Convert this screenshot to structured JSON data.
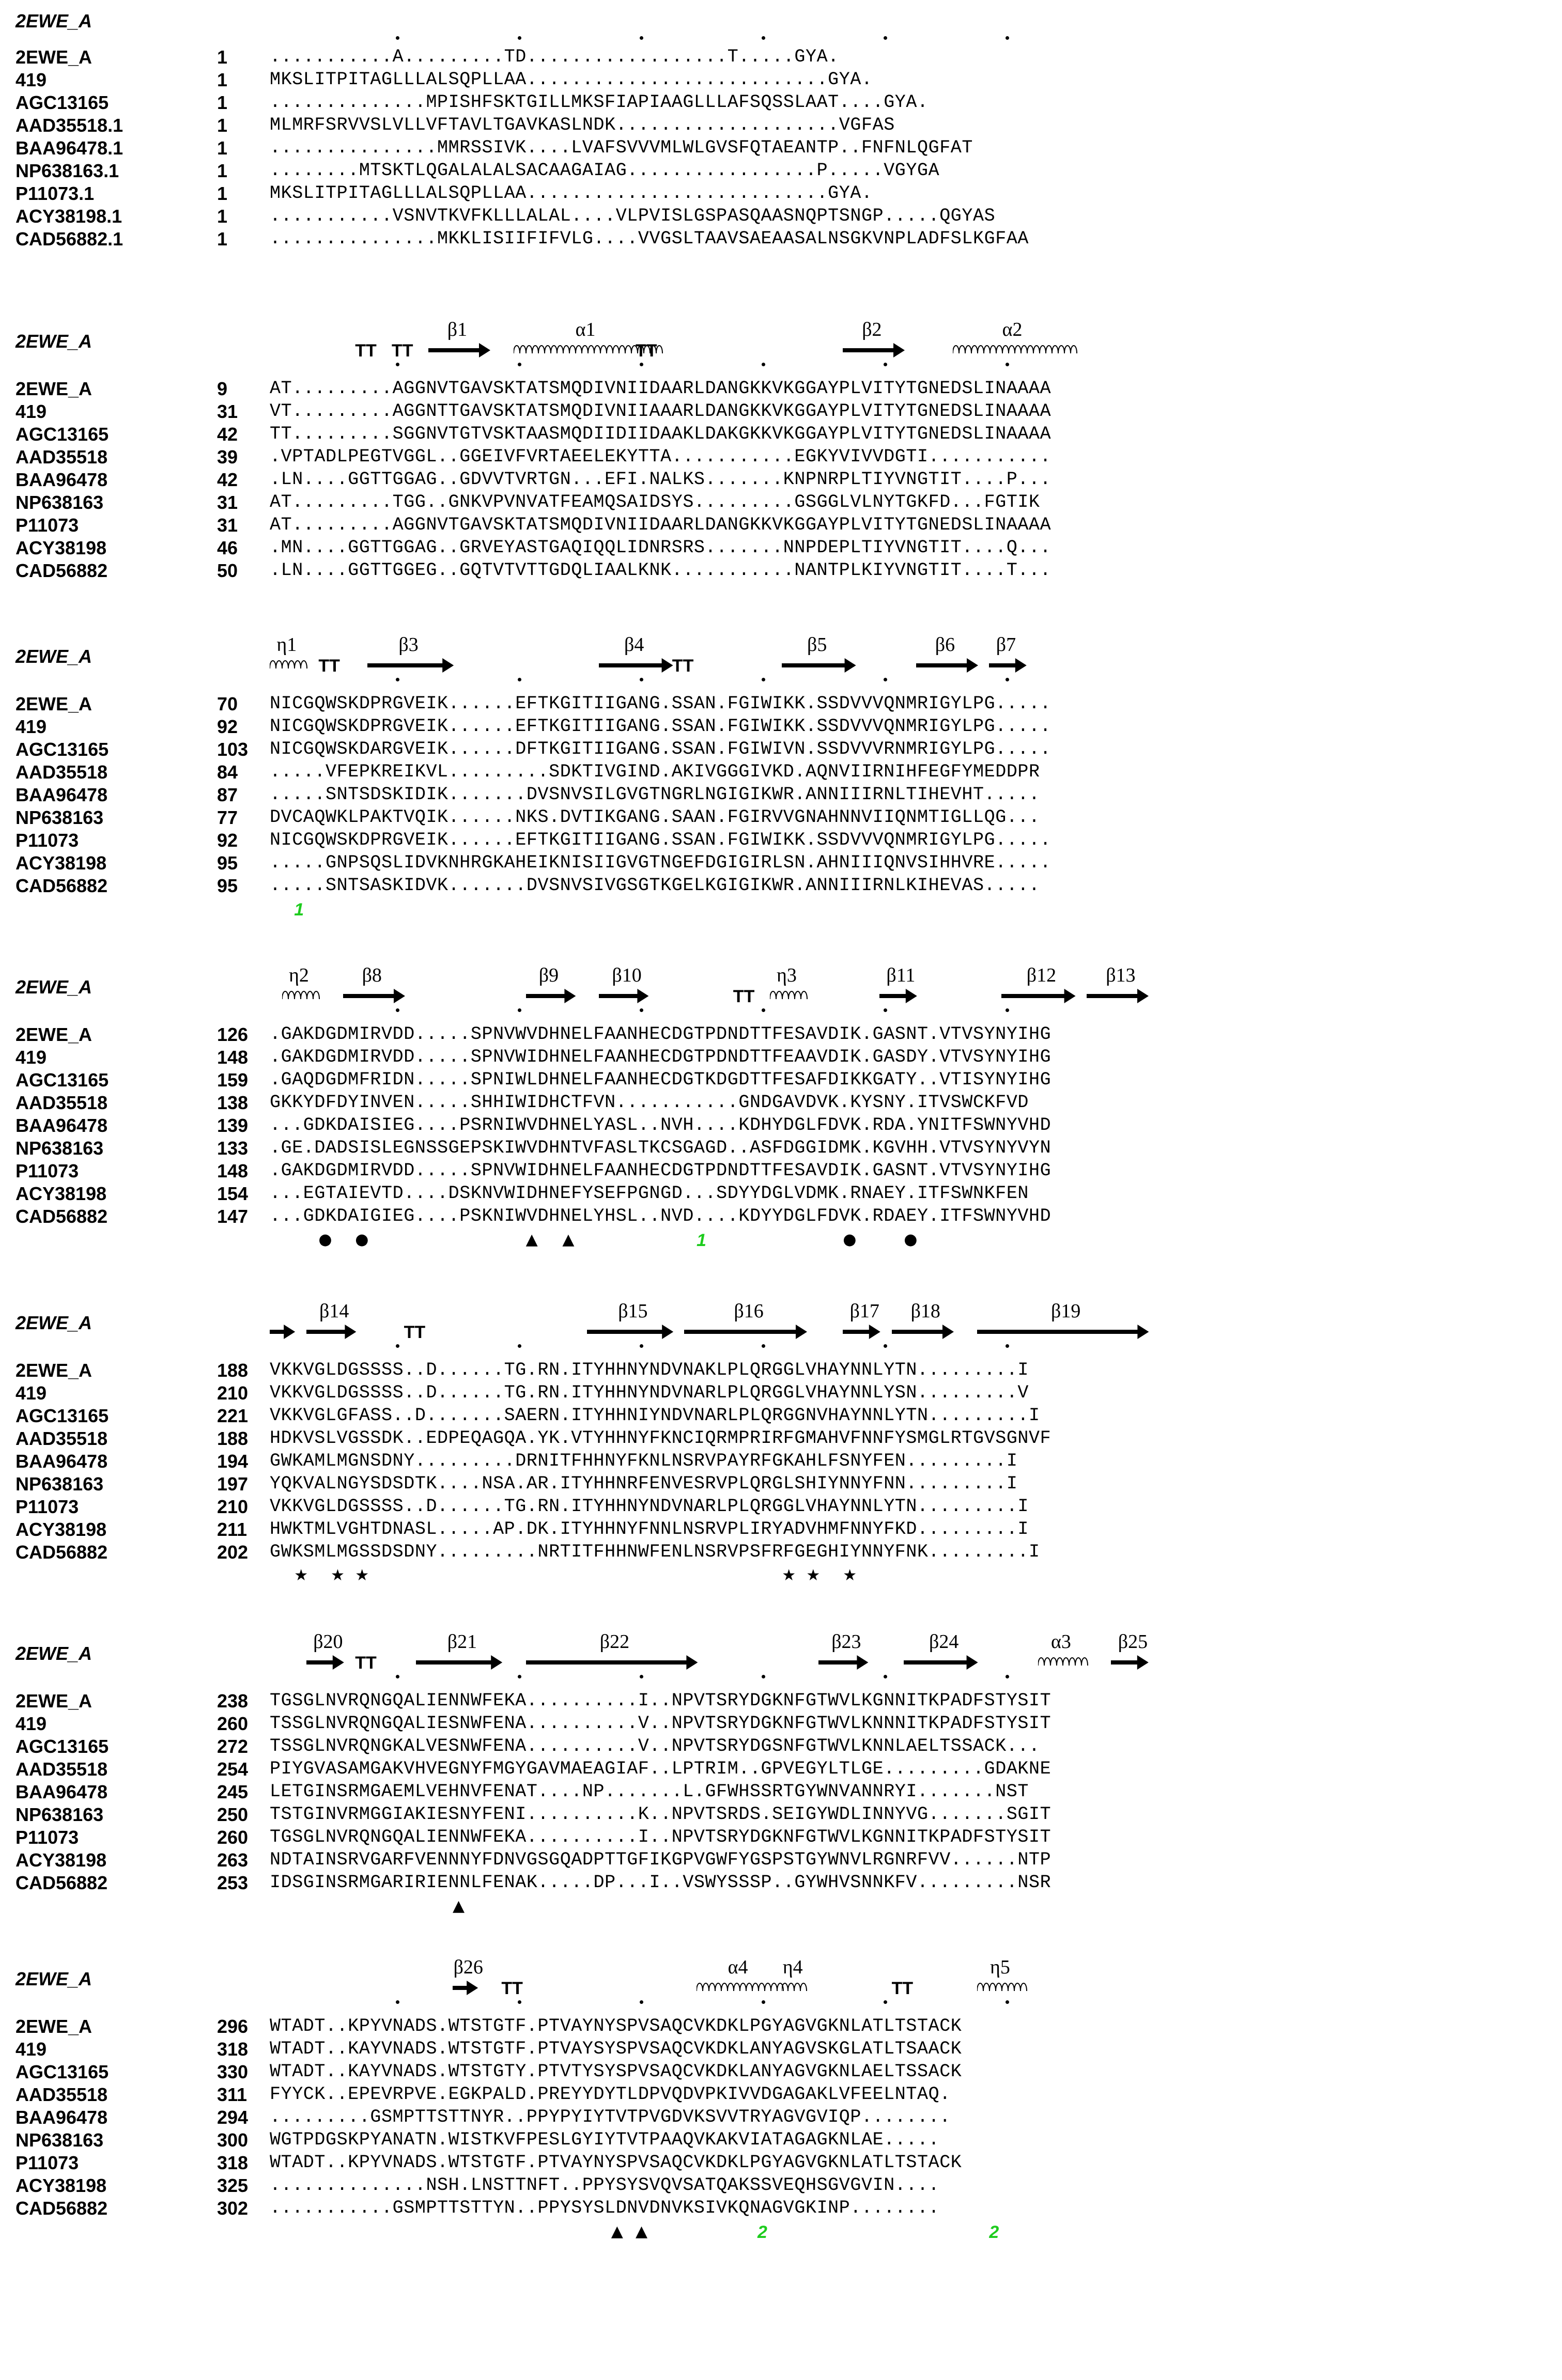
{
  "reference_name": "2EWE_A",
  "blocks": [
    {
      "names": [
        "2EWE_A",
        "419",
        "AGC13165",
        "AAD35518.1",
        "BAA96478.1",
        "NP638163.1",
        "P11073.1",
        "ACY38198.1",
        "CAD56882.1"
      ],
      "numbers": [
        "1",
        "1",
        "1",
        "1",
        "1",
        "1",
        "1",
        "1",
        "1"
      ],
      "seqs": [
        "...........A.........TD..................T.....GYA.",
        "MKSLITPITAGLLLALSQPLLAA...........................GYA.",
        "..............MPISHFSKTGILLMKSFIAPIAAGLLLAFSQSSLAAT....GYA.",
        "MLMRFSRVVSLVLLVFTAVLTGAVKASLNDK....................VGFAS",
        "...............MMRSSIVK....LVAFSVVVMLWLGVSFQTAEANTP..FNFNLQGFAT",
        "........MTSKTLQGALALALSACAAGAIAG.................P.....VGYGA",
        "MKSLITPITAGLLLALSQPLLAA...........................GYA.",
        "...........VSNVTKVFKLLLALAL....VLPVISLGSPASQAASNQPTSNGP.....QGYAS",
        "...............MKKLISIIFIFVLG....VVGSLTAAVSAEAASALNSGKVNPLADFSLKGFAA"
      ],
      "ss": [],
      "marks": []
    },
    {
      "names": [
        "2EWE_A",
        "419",
        "AGC13165",
        "AAD35518",
        "BAA96478",
        "NP638163",
        "P11073",
        "ACY38198",
        "CAD56882"
      ],
      "numbers": [
        "9",
        "31",
        "42",
        "39",
        "42",
        "31",
        "31",
        "46",
        "50"
      ],
      "seqs": [
        "AT.........AGGNVTGAVSKTATSMQDIVNIIDAARLDANGKKVKGGAYPLVITYTGNEDSLINAAAA",
        "VT.........AGGNTTGAVSKTATSMQDIVNIIAAARLDANGKKVKGGAYPLVITYTGNEDSLINAAAA",
        "TT.........SGGNVTGTVSKTAASMQDIIDIIDAAKLDAKGKKVKGGAYPLVITYTGNEDSLINAAAA",
        ".VPTADLPEGTVGGL..GGEIVFVRTAEELEKYTTA...........EGKYVIVVDGTI...........",
        ".LN....GGTTGGAG..GDVVTVRTGN...EFI.NALKS.......KNPNRPLTIYVNGTIT....P...",
        "AT.........TGG..GNKVPVNVATFEAMQSAIDSYS.........GSGGLVLNYTGKFD...FGTIK",
        "AT.........AGGNVTGAVSKTATSMQDIVNIIDAARLDANGKKVKGGAYPLVITYTGNEDSLINAAAA",
        ".MN....GGTTGGAG..GRVEYASTGAQIQQLIDNRSRS.......NNPDEPLTIYVNGTIT....Q...",
        ".LN....GGTTGGEG..GQTVTVTTGDQLIAALKNK...........NANTPLKIYVNGTIT....T..."
      ],
      "ss": [
        {
          "type": "TT",
          "pos": 7
        },
        {
          "type": "TT",
          "pos": 10
        },
        {
          "type": "arrow",
          "label": "β1",
          "start": 13,
          "end": 18
        },
        {
          "type": "helix",
          "label": "α1",
          "start": 20,
          "end": 32
        },
        {
          "type": "TT",
          "pos": 30
        },
        {
          "type": "arrow",
          "label": "β2",
          "start": 47,
          "end": 52
        },
        {
          "type": "helix",
          "label": "α2",
          "start": 56,
          "end": 66
        }
      ],
      "marks": []
    },
    {
      "names": [
        "2EWE_A",
        "419",
        "AGC13165",
        "AAD35518",
        "BAA96478",
        "NP638163",
        "P11073",
        "ACY38198",
        "CAD56882"
      ],
      "numbers": [
        "70",
        "92",
        "103",
        "84",
        "87",
        "77",
        "92",
        "95",
        "95"
      ],
      "seqs": [
        "NICGQWSKDPRGVEIK......EFTKGITIIGANG.SSAN.FGIWIKK.SSDVVVQNMRIGYLPG.....",
        "NICGQWSKDPRGVEIK......EFTKGITIIGANG.SSAN.FGIWIKK.SSDVVVQNMRIGYLPG.....",
        "NICGQWSKDARGVEIK......DFTKGITIIGANG.SSAN.FGIWIVN.SSDVVVRNMRIGYLPG.....",
        ".....VFEPKREIKVL.........SDKTIVGIND.AKIVGGGIVKD.AQNVIIRNIHFEGFYMEDDPR",
        ".....SNTSDSKIDIK.......DVSNVSILGVGTNGRLNGIGIKWR.ANNIIIRNLTIHEVHT.....",
        "DVCAQWKLPAKTVQIK......NKS.DVTIKGANG.SAAN.FGIRVVGNAHNNVIIQNMTIGLLQG...",
        "NICGQWSKDPRGVEIK......EFTKGITIIGANG.SSAN.FGIWIKK.SSDVVVQNMRIGYLPG.....",
        ".....GNPSQSLIDVKNHRGKAHEIKNISIIGVGTNGEFDGIGIRLSN.AHNIIIQNVSIHHVRE.....",
        ".....SNTSASKIDVK.......DVSNVSIVGSGTKGELKGIGIKWR.ANNIIIRNLKIHEVAS....."
      ],
      "ss": [
        {
          "type": "eta",
          "label": "η1",
          "start": 0,
          "end": 3
        },
        {
          "type": "TT",
          "pos": 4
        },
        {
          "type": "arrow",
          "label": "β3",
          "start": 8,
          "end": 15
        },
        {
          "type": "arrow",
          "label": "β4",
          "start": 27,
          "end": 33
        },
        {
          "type": "TT",
          "pos": 33
        },
        {
          "type": "arrow",
          "label": "β5",
          "start": 42,
          "end": 48
        },
        {
          "type": "arrow",
          "label": "β6",
          "start": 53,
          "end": 58
        },
        {
          "type": "arrow",
          "label": "β7",
          "start": 59,
          "end": 62
        }
      ],
      "marks": [
        {
          "type": "green",
          "text": "1",
          "pos": 2
        }
      ]
    },
    {
      "names": [
        "2EWE_A",
        "419",
        "AGC13165",
        "AAD35518",
        "BAA96478",
        "NP638163",
        "P11073",
        "ACY38198",
        "CAD56882"
      ],
      "numbers": [
        "126",
        "148",
        "159",
        "138",
        "139",
        "133",
        "148",
        "154",
        "147"
      ],
      "seqs": [
        ".GAKDGDMIRVDD.....SPNVWVDHNELFAANHECDGTPDNDTTFESAVDIK.GASNT.VTVSYNYIHG",
        ".GAKDGDMIRVDD.....SPNVWIDHNELFAANHECDGTPDNDTTFEAAVDIK.GASDY.VTVSYNYIHG",
        ".GAQDGDMFRIDN.....SPNIWLDHNELFAANHECDGTKDGDTTFESAFDIKKGATY..VTISYNYIHG",
        "GKKYDFDYINVEN.....SHHIWIDHCTFVN...........GNDGAVDVK.KYSNY.ITVSWCKFVD",
        "...GDKDAISIEG....PSRNIWVDHNELYASL..NVH....KDHYDGLFDVK.RDA.YNITFSWNYVHD",
        ".GE.DADSISLEGNSSGEPSKIWVDHNTVFASLTKCSGAGD..ASFDGGIDMK.KGVHH.VTVSYNYVYN",
        ".GAKDGDMIRVDD.....SPNVWIDHNELFAANHECDGTPDNDTTFESAVDIK.GASNT.VTVSYNYIHG",
        "...EGTAIEVTD....DSKNVWIDHNEFYSEFPGNGD...SDYYDGLVDMK.RNAEY.ITFSWNKFEN",
        "...GDKDAIGIEG....PSKNIWVDHNELYHSL..NVD....KDYYDGLFDVK.RDAEY.ITFSWNYVHD"
      ],
      "ss": [
        {
          "type": "eta",
          "label": "η2",
          "start": 1,
          "end": 4
        },
        {
          "type": "arrow",
          "label": "β8",
          "start": 6,
          "end": 11
        },
        {
          "type": "arrow",
          "label": "β9",
          "start": 21,
          "end": 25
        },
        {
          "type": "arrow",
          "label": "β10",
          "start": 27,
          "end": 31
        },
        {
          "type": "TT",
          "pos": 38
        },
        {
          "type": "eta",
          "label": "η3",
          "start": 41,
          "end": 44
        },
        {
          "type": "arrow",
          "label": "β11",
          "start": 50,
          "end": 53
        },
        {
          "type": "arrow",
          "label": "β12",
          "start": 60,
          "end": 66
        },
        {
          "type": "arrow",
          "label": "β13",
          "start": 67,
          "end": 72
        }
      ],
      "marks": [
        {
          "type": "circle",
          "pos": 4
        },
        {
          "type": "circle",
          "pos": 7
        },
        {
          "type": "triangle",
          "pos": 21
        },
        {
          "type": "triangle",
          "pos": 24
        },
        {
          "type": "green",
          "text": "1",
          "pos": 35
        },
        {
          "type": "circle",
          "pos": 47
        },
        {
          "type": "circle",
          "pos": 52
        }
      ]
    },
    {
      "names": [
        "2EWE_A",
        "419",
        "AGC13165",
        "AAD35518",
        "BAA96478",
        "NP638163",
        "P11073",
        "ACY38198",
        "CAD56882"
      ],
      "numbers": [
        "188",
        "210",
        "221",
        "188",
        "194",
        "197",
        "210",
        "211",
        "202"
      ],
      "seqs": [
        "VKKVGLDGSSSS..D......TG.RN.ITYHHNYNDVNAKLPLQRGGLVHAYNNLYTN.........I",
        "VKKVGLDGSSSS..D......TG.RN.ITYHHNYNDVNARLPLQRGGLVHAYNNLYSN.........V",
        "VKKVGLGFASS..D.......SAERN.ITYHHNIYNDVNARLPLQRGGNVHAYNNLYTN.........I",
        "HDKVSLVGSSDK..EDPEQAGQA.YK.VTYHHNYFKNCIQRMPRIRFGMAHVFNNFYSMGLRTGVSGNVF",
        "GWKAMLMGNSDNY.........DRNITFHHNYFKNLNSRVPAYRFGKAHLFSNYFEN.........I",
        "YQKVALNGYSDSDTK....NSA.AR.ITYHHNRFENVESRVPLQRGLSHIYNNYFNN.........I",
        "VKKVGLDGSSSS..D......TG.RN.ITYHHNYNDVNARLPLQRGGLVHAYNNLYTN.........I",
        "HWKTMLVGHTDNASL.....AP.DK.ITYHHNYFNNLNSRVPLIRYADVHMFNNYFKD.........I",
        "GWKSMLMGSSDSDNY.........NRTITFHHNWFENLNSRVPSFRFGEGHIYNNYFNK.........I"
      ],
      "ss": [
        {
          "type": "arrow",
          "label": "",
          "start": 0,
          "end": 2
        },
        {
          "type": "arrow",
          "label": "β14",
          "start": 3,
          "end": 7
        },
        {
          "type": "TT",
          "pos": 11
        },
        {
          "type": "arrow",
          "label": "β15",
          "start": 26,
          "end": 33
        },
        {
          "type": "arrow",
          "label": "β16",
          "start": 34,
          "end": 44
        },
        {
          "type": "arrow",
          "label": "β17",
          "start": 47,
          "end": 50
        },
        {
          "type": "arrow",
          "label": "β18",
          "start": 51,
          "end": 56
        },
        {
          "type": "arrow",
          "label": "β19",
          "start": 58,
          "end": 72
        }
      ],
      "marks": [
        {
          "type": "star",
          "pos": 2
        },
        {
          "type": "star",
          "pos": 5
        },
        {
          "type": "star",
          "pos": 7
        },
        {
          "type": "star",
          "pos": 42
        },
        {
          "type": "star",
          "pos": 44
        },
        {
          "type": "star",
          "pos": 47
        }
      ]
    },
    {
      "names": [
        "2EWE_A",
        "419",
        "AGC13165",
        "AAD35518",
        "BAA96478",
        "NP638163",
        "P11073",
        "ACY38198",
        "CAD56882"
      ],
      "numbers": [
        "238",
        "260",
        "272",
        "254",
        "245",
        "250",
        "260",
        "263",
        "253"
      ],
      "seqs": [
        "TGSGLNVRQNGQALIENNWFEKA..........I..NPVTSRYDGKNFGTWVLKGNNITKPADFSTYSIT",
        "TSSGLNVRQNGQALIESNWFENA..........V..NPVTSRYDGKNFGTWVLKNNNITKPADFSTYSIT",
        "TSSGLNVRQNGKALVESNWFENA..........V..NPVTSRYDGSNFGTWVLKNNLAELTSSACK...",
        "PIYGVASAMGAKVHVEGNYFMGYGAVMAEAGIAF..LPTRIM..GPVEGYLTLGE.........GDAKNE",
        "LETGINSRMGAEMLVEHNVFENAT....NP.......L.GFWHSSRTGYWNVANNRYI.......NST",
        "TSTGINVRMGGIAKIESNYFENI..........K..NPVTSRDS.SEIGYWDLINNYVG.......SGIT",
        "TGSGLNVRQNGQALIENNWFEKA..........I..NPVTSRYDGKNFGTWVLKGNNITKPADFSTYSIT",
        "NDTAINSRVGARFVENNNYFDNVGSGQADPTTGFIKGPVGWFYGSPSTGYWNVLRGNRFVV......NTP",
        "IDSGINSRMGARIRIENNLFENAK.....DP...I..VSWYSSSP..GYWHVSNNKFV.........NSR"
      ],
      "ss": [
        {
          "type": "arrow",
          "label": "β20",
          "start": 3,
          "end": 6
        },
        {
          "type": "TT",
          "pos": 7
        },
        {
          "type": "arrow",
          "label": "β21",
          "start": 12,
          "end": 19
        },
        {
          "type": "arrow",
          "label": "β22",
          "start": 21,
          "end": 35
        },
        {
          "type": "arrow",
          "label": "β23",
          "start": 45,
          "end": 49
        },
        {
          "type": "arrow",
          "label": "β24",
          "start": 52,
          "end": 58
        },
        {
          "type": "helix",
          "label": "α3",
          "start": 63,
          "end": 67
        },
        {
          "type": "arrow",
          "label": "β25",
          "start": 69,
          "end": 72
        }
      ],
      "marks": [
        {
          "type": "triangle",
          "pos": 15
        }
      ]
    },
    {
      "names": [
        "2EWE_A",
        "419",
        "AGC13165",
        "AAD35518",
        "BAA96478",
        "NP638163",
        "P11073",
        "ACY38198",
        "CAD56882"
      ],
      "numbers": [
        "296",
        "318",
        "330",
        "311",
        "294",
        "300",
        "318",
        "325",
        "302"
      ],
      "seqs": [
        "WTADT..KPYVNADS.WTSTGTF.PTVAYNYSPVSAQCVKDKLPGYAGVGKNLATLTSTACK",
        "WTADT..KAYVNADS.WTSTGTF.PTVAYSYSPVSAQCVKDKLANYAGVSKGLATLTSAACK",
        "WTADT..KAYVNADS.WTSTGTY.PTVTYSYSPVSAQCVKDKLANYAGVGKNLAELTSSACK",
        "FYYCK..EPEVRPVE.EGKPALD.PREYYDYTLDPVQDVPKIVVDGAGAKLVFEELNTAQ.",
        ".........GSMPTTSTTNYR..PPYPYIYTVTPVGDVKSVVTRYAGVGVIQP........",
        "WGTPDGSKPYANATN.WISTKVFPESLGYIYTVTPAAQVKAKVIATAGAGKNLAE.....",
        "WTADT..KPYVNADS.WTSTGTF.PTVAYNYSPVSAQCVKDKLPGYAGVGKNLATLTSTACK",
        "..............NSH.LNSTTNFT..PPYSYSVQVSATQAKSSVEQHSGVGVIN....",
        "...........GSMPTTSTTYN..PPYSYSLDNVDNVKSIVKQNAGVGKINP........"
      ],
      "ss": [
        {
          "type": "arrow",
          "label": "β26",
          "start": 15,
          "end": 17
        },
        {
          "type": "TT",
          "pos": 19
        },
        {
          "type": "helix",
          "label": "α4",
          "start": 35,
          "end": 42
        },
        {
          "type": "helix",
          "label": "η4",
          "start": 42,
          "end": 44
        },
        {
          "type": "TT",
          "pos": 51
        },
        {
          "type": "eta",
          "label": "η5",
          "start": 58,
          "end": 62
        }
      ],
      "marks": [
        {
          "type": "triangle",
          "pos": 28
        },
        {
          "type": "triangle",
          "pos": 30
        },
        {
          "type": "green",
          "text": "2",
          "pos": 40
        },
        {
          "type": "green",
          "text": "2",
          "pos": 59
        }
      ]
    }
  ]
}
